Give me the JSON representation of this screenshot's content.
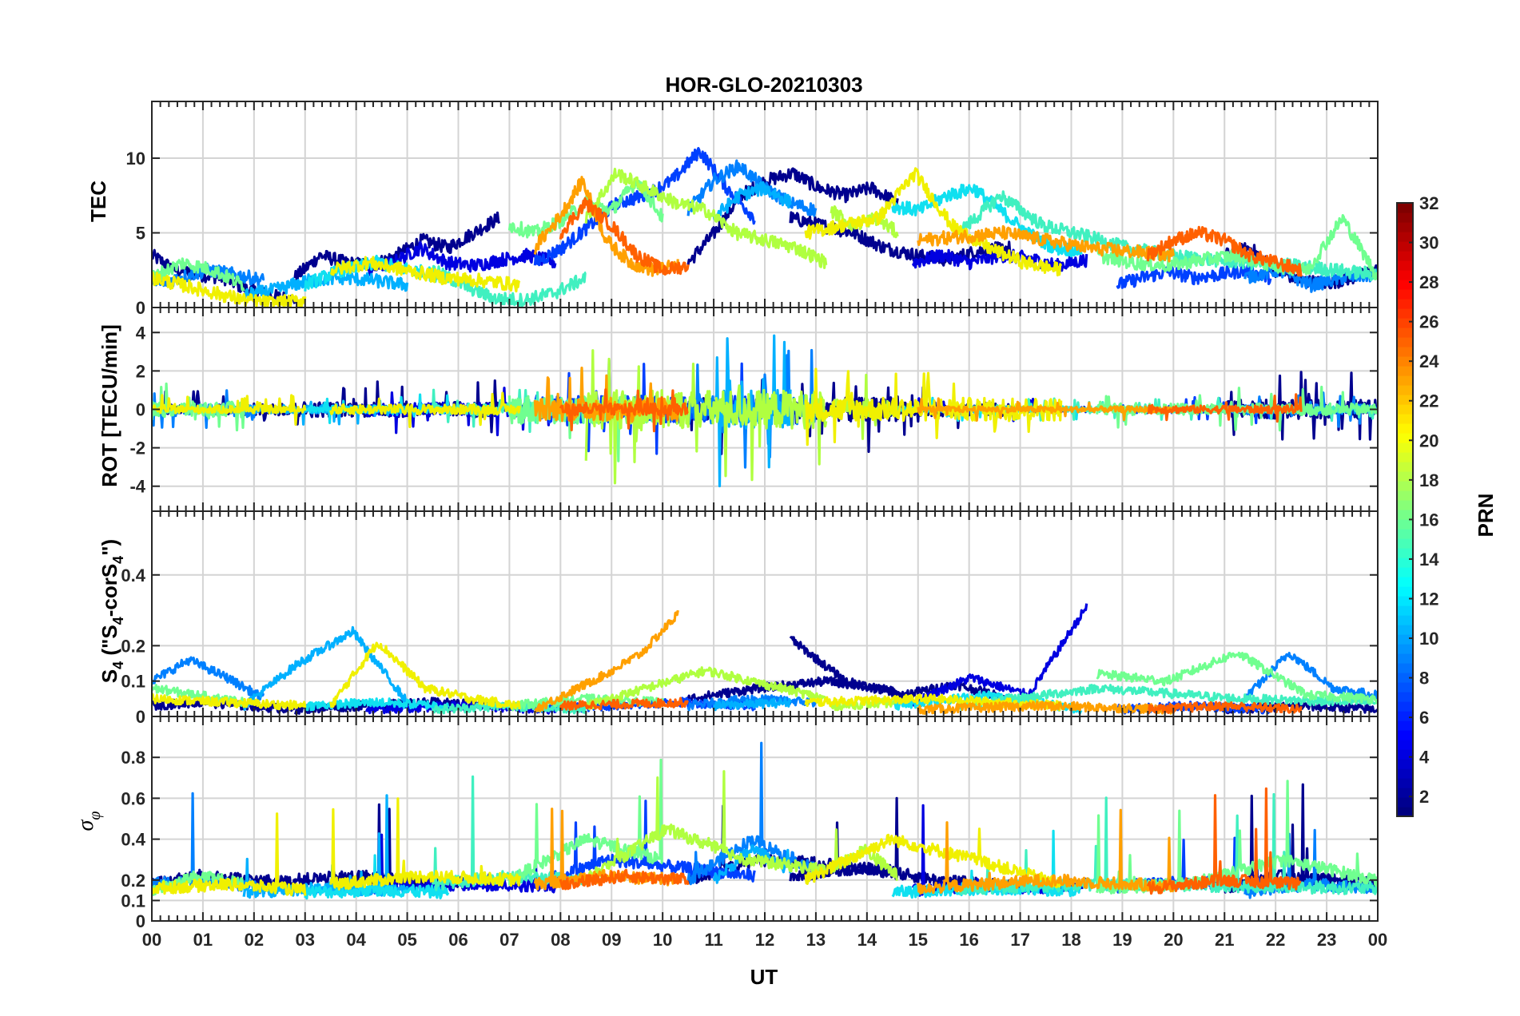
{
  "chart_data": {
    "type": "line",
    "title": "HOR-GLO-20210303",
    "xlabel": "UT",
    "x_tick_labels": [
      "00",
      "01",
      "02",
      "03",
      "04",
      "05",
      "06",
      "07",
      "08",
      "09",
      "10",
      "11",
      "12",
      "13",
      "14",
      "15",
      "16",
      "17",
      "18",
      "19",
      "20",
      "21",
      "22",
      "23",
      "00"
    ],
    "xlim": [
      0,
      24
    ],
    "grid": true,
    "panels": [
      {
        "id": "tec",
        "ylabel": "TEC",
        "ylim": [
          0,
          13.8
        ],
        "yticks": [
          0,
          5,
          10
        ],
        "ytick_labels": [
          "0",
          "5",
          "10"
        ]
      },
      {
        "id": "rot",
        "ylabel": "ROT [TECU/min]",
        "ylim": [
          -5.3,
          5.3
        ],
        "yticks": [
          -4,
          -2,
          0,
          2,
          4
        ],
        "ytick_labels": [
          "-4",
          "-2",
          "0",
          "2",
          "4"
        ]
      },
      {
        "id": "s4",
        "ylabel": "S4 (\"S4-corS4\")",
        "ylabel_parts": [
          "S",
          "4",
          " (\"S",
          "4",
          "-corS",
          "4",
          "\")"
        ],
        "ylim": [
          0,
          0.58
        ],
        "yticks": [
          0,
          0.1,
          0.2,
          0.4
        ],
        "ytick_labels": [
          "0",
          "0.1",
          "0.2",
          "0.4"
        ]
      },
      {
        "id": "sigma",
        "ylabel": "σφ",
        "ylabel_parts": [
          "σ",
          "φ"
        ],
        "ylim": [
          0,
          1
        ],
        "yticks": [
          0,
          0.1,
          0.2,
          0.4,
          0.6,
          0.8
        ],
        "ytick_labels": [
          "0",
          "0.1",
          "0.2",
          "0.4",
          "0.6",
          "0.8"
        ]
      }
    ],
    "colorbar": {
      "label": "PRN",
      "colormap": "jet",
      "range": [
        1,
        32
      ],
      "ticks": [
        2,
        4,
        6,
        8,
        10,
        12,
        14,
        16,
        18,
        20,
        22,
        24,
        26,
        28,
        30,
        32
      ],
      "tick_labels": [
        "2",
        "4",
        "6",
        "8",
        "10",
        "12",
        "14",
        "16",
        "18",
        "20",
        "22",
        "24",
        "26",
        "28",
        "30",
        "32"
      ]
    },
    "series": [
      {
        "prn": 2,
        "color": "#00008f",
        "segments": [
          {
            "start": 0.0,
            "end": 2.8,
            "tec": [
              3.5,
              2.5,
              2.2,
              2.0,
              1.2,
              0.8,
              0.5
            ],
            "rot_amp": 0.6,
            "s4": [
              0.03,
              0.04,
              0.03,
              0.02
            ],
            "sig": [
              0.18,
              0.22,
              0.2,
              0.19
            ]
          },
          {
            "start": 2.8,
            "end": 6.8,
            "tec": [
              2.0,
              3.5,
              3.0,
              2.8,
              3.5,
              4.5,
              4.0,
              5.0,
              6.0
            ],
            "rot_amp": 0.8,
            "s4": [
              0.02,
              0.03,
              0.04,
              0.03
            ],
            "sig": [
              0.2,
              0.22,
              0.18,
              0.2
            ]
          },
          {
            "start": 10.5,
            "end": 14.6,
            "tec": [
              3.0,
              5.0,
              7.5,
              8.5,
              9.0,
              8.0,
              7.5,
              8.0,
              7.0
            ],
            "rot_amp": 1.2,
            "s4": [
              0.05,
              0.08,
              0.1,
              0.07
            ],
            "sig": [
              0.2,
              0.3,
              0.28,
              0.24
            ]
          },
          {
            "start": 12.5,
            "end": 16.8,
            "tec": [
              6.0,
              5.5,
              5.0,
              4.0,
              3.5,
              3.2,
              3.8,
              4.0
            ],
            "rot_amp": 0.7,
            "s4": [
              0.22,
              0.1,
              0.06,
              0.09,
              0.05
            ],
            "sig": [
              0.22,
              0.26,
              0.2,
              0.17
            ]
          },
          {
            "start": 21.0,
            "end": 24.0,
            "tec": [
              3.5,
              4.0,
              2.5,
              1.8,
              1.6,
              2.0,
              2.5
            ],
            "rot_amp": 1.0,
            "s4": [
              0.02,
              0.03,
              0.02
            ],
            "sig": [
              0.16,
              0.22,
              0.2,
              0.18
            ]
          }
        ]
      },
      {
        "prn": 4,
        "color": "#0000e0",
        "segments": [
          {
            "start": 4.2,
            "end": 7.9,
            "tec": [
              2.5,
              3.0,
              4.0,
              3.0,
              2.8,
              3.2,
              3.5,
              3.0
            ],
            "rot_amp": 0.7,
            "s4": [
              0.02,
              0.03,
              0.02
            ],
            "sig": [
              0.16,
              0.18,
              0.17
            ]
          },
          {
            "start": 14.9,
            "end": 18.3,
            "tec": [
              3.0,
              3.5,
              3.0,
              3.5,
              3.3,
              2.8,
              3.2
            ],
            "rot_amp": 0.3,
            "s4": [
              0.04,
              0.11,
              0.06,
              0.31
            ],
            "sig": [
              0.15,
              0.17,
              0.16,
              0.18
            ]
          }
        ]
      },
      {
        "prn": 6,
        "color": "#0040ff",
        "segments": [
          {
            "start": 7.5,
            "end": 11.8,
            "tec": [
              3.0,
              4.0,
              5.5,
              7.0,
              7.5,
              8.5,
              10.5,
              8.0,
              6.0
            ],
            "rot_amp": 1.4,
            "s4": [
              0.02,
              0.03,
              0.04,
              0.03
            ],
            "sig": [
              0.18,
              0.3,
              0.26,
              0.22
            ]
          },
          {
            "start": 18.9,
            "end": 21.9,
            "tec": [
              1.5,
              2.0,
              2.4,
              2.0,
              2.2,
              2.5,
              2.0
            ],
            "rot_amp": 0.4,
            "s4": [
              0.02,
              0.03,
              0.02
            ],
            "sig": [
              0.17,
              0.19,
              0.18
            ]
          }
        ]
      },
      {
        "prn": 9,
        "color": "#0080ff",
        "segments": [
          {
            "start": 0.0,
            "end": 2.2,
            "tec": [
              1.5,
              2.0,
              2.5,
              2.2,
              1.8
            ],
            "rot_amp": 0.5,
            "s4": [
              0.1,
              0.16,
              0.11,
              0.05
            ],
            "sig": [
              0.18,
              0.2,
              0.16
            ]
          },
          {
            "start": 10.5,
            "end": 13.0,
            "tec": [
              6.5,
              8.5,
              9.5,
              8.0,
              7.0,
              6.5
            ],
            "rot_amp": 1.6,
            "s4": [
              0.03,
              0.05,
              0.04
            ],
            "sig": [
              0.2,
              0.4,
              0.25
            ]
          },
          {
            "start": 21.4,
            "end": 24.0,
            "tec": [
              2.0,
              2.5,
              1.5,
              2.0,
              2.2
            ],
            "rot_amp": 0.5,
            "s4": [
              0.05,
              0.18,
              0.08,
              0.06
            ],
            "sig": [
              0.14,
              0.18,
              0.16
            ]
          }
        ]
      },
      {
        "prn": 11,
        "color": "#00b0ff",
        "segments": [
          {
            "start": 1.8,
            "end": 5.0,
            "tec": [
              0.8,
              1.2,
              1.8,
              2.0,
              1.8,
              1.5
            ],
            "rot_amp": 0.4,
            "s4": [
              0.03,
              0.15,
              0.24,
              0.04
            ],
            "sig": [
              0.14,
              0.16,
              0.15
            ]
          },
          {
            "start": 11.0,
            "end": 12.5,
            "tec": [
              6.0,
              7.5,
              8.0,
              7.0
            ],
            "rot_amp": 2.0,
            "s4": [
              0.03,
              0.04
            ],
            "sig": [
              0.2,
              0.35,
              0.25
            ]
          }
        ]
      },
      {
        "prn": 13,
        "color": "#10e0f0",
        "segments": [
          {
            "start": 3.0,
            "end": 5.8,
            "tec": [
              1.5,
              2.5,
              3.0,
              2.5,
              2.0
            ],
            "rot_amp": 0.4,
            "s4": [
              0.03,
              0.04,
              0.03
            ],
            "sig": [
              0.14,
              0.15,
              0.14
            ]
          },
          {
            "start": 14.5,
            "end": 18.2,
            "tec": [
              6.8,
              6.5,
              7.5,
              8.0,
              6.5,
              5.0,
              4.0,
              3.8
            ],
            "rot_amp": 0.3,
            "s4": [
              0.03,
              0.06,
              0.02
            ],
            "sig": [
              0.14,
              0.16,
              0.15
            ]
          }
        ]
      },
      {
        "prn": 15,
        "color": "#40f0c0",
        "segments": [
          {
            "start": 5.5,
            "end": 8.5,
            "tec": [
              2.5,
              1.5,
              0.6,
              0.5,
              1.0,
              2.0
            ],
            "rot_amp": 0.6,
            "s4": [
              0.02,
              0.03,
              0.02
            ],
            "sig": [
              0.18,
              0.22,
              0.2
            ]
          },
          {
            "start": 15.8,
            "end": 24.0,
            "tec": [
              5.0,
              7.5,
              5.5,
              4.8,
              4.0,
              3.5,
              3.2,
              3.0,
              2.8,
              2.5,
              2.2
            ],
            "rot_amp": 0.3,
            "s4": [
              0.03,
              0.08,
              0.05,
              0.04
            ],
            "sig": [
              0.16,
              0.18,
              0.17,
              0.16
            ]
          }
        ]
      },
      {
        "prn": 16,
        "color": "#70ff90",
        "segments": [
          {
            "start": 0.0,
            "end": 1.8,
            "tec": [
              2.0,
              3.0,
              2.5,
              1.5
            ],
            "rot_amp": 0.8,
            "s4": [
              0.08,
              0.06,
              0.04
            ],
            "sig": [
              0.15,
              0.22,
              0.18
            ]
          },
          {
            "start": 7.0,
            "end": 10.0,
            "tec": [
              5.5,
              5.0,
              5.8,
              7.0,
              6.5,
              8.5,
              6.0
            ],
            "rot_amp": 1.5,
            "s4": [
              0.03,
              0.05,
              0.04
            ],
            "sig": [
              0.2,
              0.4,
              0.3
            ]
          },
          {
            "start": 18.5,
            "end": 24.0,
            "tec": [
              3.5,
              3.0,
              2.8,
              3.2,
              3.5,
              2.8,
              2.5,
              6.0,
              2.0
            ],
            "rot_amp": 0.6,
            "s4": [
              0.12,
              0.1,
              0.18,
              0.06,
              0.05
            ],
            "sig": [
              0.16,
              0.18,
              0.3,
              0.2
            ]
          }
        ]
      },
      {
        "prn": 18,
        "color": "#b0ff40",
        "segments": [
          {
            "start": 8.5,
            "end": 13.2,
            "tec": [
              6.0,
              9.0,
              8.0,
              7.0,
              6.5,
              5.0,
              4.5,
              4.0,
              3.0
            ],
            "rot_amp": 2.0,
            "s4": [
              0.03,
              0.13,
              0.05
            ],
            "sig": [
              0.2,
              0.45,
              0.3,
              0.25
            ]
          },
          {
            "start": 13.3,
            "end": 14.6,
            "tec": [
              6.5,
              5.5,
              6.0,
              5.0
            ],
            "rot_amp": 1.0,
            "s4": [
              0.03,
              0.04
            ],
            "sig": [
              0.25,
              0.35,
              0.22
            ]
          }
        ]
      },
      {
        "prn": 20,
        "color": "#f0f000",
        "segments": [
          {
            "start": 0.0,
            "end": 3.0,
            "tec": [
              2.0,
              1.5,
              1.0,
              0.5,
              0.3,
              0.5
            ],
            "rot_amp": 0.4,
            "s4": [
              0.05,
              0.04,
              0.03
            ],
            "sig": [
              0.16,
              0.18,
              0.15
            ]
          },
          {
            "start": 3.5,
            "end": 7.2,
            "tec": [
              2.5,
              3.0,
              2.5,
              2.0,
              1.8,
              1.5
            ],
            "rot_amp": 0.5,
            "s4": [
              0.03,
              0.21,
              0.08,
              0.05,
              0.03
            ],
            "sig": [
              0.18,
              0.22,
              0.2
            ]
          },
          {
            "start": 12.8,
            "end": 17.8,
            "tec": [
              5.0,
              5.5,
              6.0,
              9.0,
              5.5,
              4.0,
              3.0,
              2.5
            ],
            "rot_amp": 1.2,
            "s4": [
              0.04,
              0.05,
              0.03
            ],
            "sig": [
              0.2,
              0.4,
              0.3,
              0.18
            ]
          }
        ]
      },
      {
        "prn": 22,
        "color": "#ffa000",
        "segments": [
          {
            "start": 7.5,
            "end": 10.3,
            "tec": [
              4.0,
              6.0,
              8.5,
              4.5,
              3.0,
              2.5,
              2.8
            ],
            "rot_amp": 1.2,
            "s4": [
              0.02,
              0.07,
              0.12,
              0.18,
              0.29
            ],
            "sig": [
              0.18,
              0.22,
              0.2
            ]
          },
          {
            "start": 15.0,
            "end": 20.0,
            "tec": [
              4.5,
              5.0,
              4.0,
              3.5
            ],
            "rot_amp": 0.3,
            "s4": [
              0.02,
              0.03,
              0.02
            ],
            "sig": [
              0.16,
              0.2,
              0.17
            ]
          }
        ]
      },
      {
        "prn": 24,
        "color": "#ff6000",
        "segments": [
          {
            "start": 8.0,
            "end": 10.5,
            "tec": [
              5.0,
              7.0,
              5.5,
              3.5,
              2.5,
              2.8
            ],
            "rot_amp": 0.6,
            "s4": [
              0.03,
              0.04
            ],
            "sig": [
              0.18,
              0.22,
              0.2
            ]
          },
          {
            "start": 19.5,
            "end": 22.5,
            "tec": [
              3.5,
              4.5,
              5.0,
              4.5,
              3.5,
              3.0,
              2.5
            ],
            "rot_amp": 0.4,
            "s4": [
              0.02,
              0.03,
              0.02
            ],
            "sig": [
              0.16,
              0.2,
              0.18
            ]
          }
        ]
      }
    ]
  }
}
